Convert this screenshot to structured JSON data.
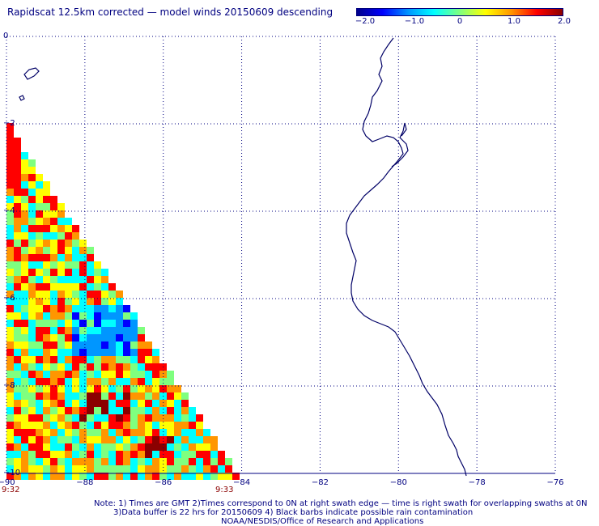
{
  "title": "Rapidscat 12.5km corrected — model winds 20150609 descending",
  "colorbar": {
    "ticks": [
      "−2.0",
      "−1.0",
      "0",
      "1.0",
      "2.0"
    ],
    "stops": [
      "#00008b",
      "#0000ff",
      "#0096ff",
      "#00ffff",
      "#7fff7f",
      "#ffff00",
      "#ff9600",
      "#ff0000",
      "#8b0000"
    ]
  },
  "axes": {
    "x_ticks": [
      "−90",
      "−88",
      "−86",
      "−84",
      "−82",
      "−80",
      "−78",
      "−76"
    ],
    "y_ticks": [
      "0",
      "−2",
      "−4",
      "−6",
      "−8",
      "−10"
    ]
  },
  "times": {
    "left": "9:32",
    "right": "9:33"
  },
  "footnotes": [
    "Note: 1) Times are GMT 2)Times correspond to 0N at right swath edge — time is right swath for overlapping swaths at 0N",
    "3)Data buffer is 22 hrs for 20150609 4) Black barbs indicate possible rain contamination",
    "NOAA/NESDIS/Office of Research and Applications"
  ],
  "colors": {
    "text": "#000080",
    "grid": "#000080",
    "coast": "#000066",
    "time": "#8b0000"
  }
}
